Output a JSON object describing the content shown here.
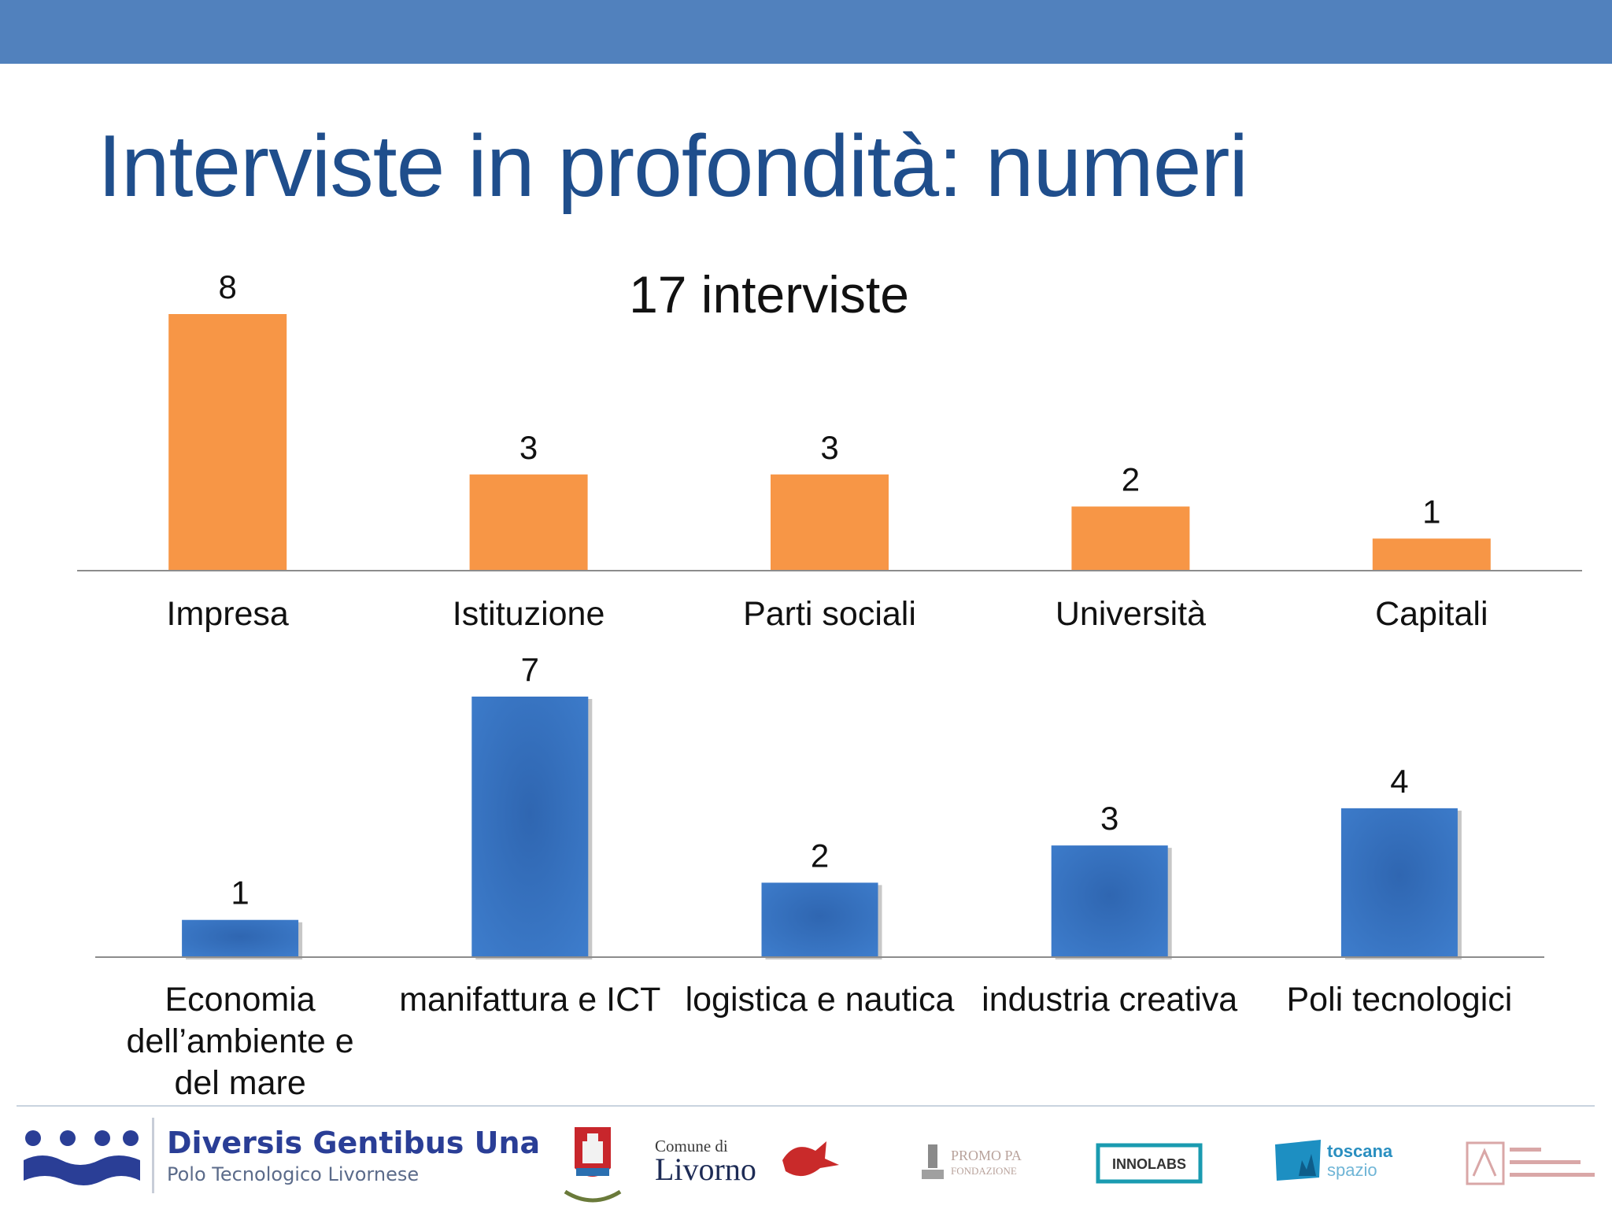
{
  "slide": {
    "title": "Interviste in profondità: numeri"
  },
  "colors": {
    "top_bar": "#5181bd",
    "title": "#1f4e8c",
    "bar_orange": "#f79646",
    "bar_blue": "#3a78c8",
    "axis": "#8c8c8c"
  },
  "chart_data": [
    {
      "type": "bar",
      "title": "17 interviste",
      "categories": [
        "Impresa",
        "Istituzione",
        "Parti sociali",
        "Università",
        "Capitali"
      ],
      "values": [
        8,
        3,
        3,
        2,
        1
      ],
      "ylim": [
        0,
        8
      ],
      "grid": false,
      "legend": "none",
      "data_labels": true,
      "color": "#f79646"
    },
    {
      "type": "bar",
      "title": "",
      "categories": [
        [
          "Economia",
          "dell’ambiente e",
          "del mare"
        ],
        [
          "manifattura e ICT"
        ],
        [
          "logistica e nautica"
        ],
        [
          "industria creativa"
        ],
        [
          "Poli tecnologici"
        ]
      ],
      "values": [
        1,
        7,
        2,
        3,
        4
      ],
      "ylim": [
        0,
        7
      ],
      "grid": false,
      "legend": "none",
      "data_labels": true,
      "color": "#3a78c8"
    }
  ],
  "footer": {
    "dgu_title": "Diversis Gentibus Una",
    "dgu_subtitle": "Polo Tecnologico Livornese",
    "comune_small": "Comune di",
    "comune_big": "Livorno",
    "logos": [
      "livorno-crest-icon",
      "cocchi-logo",
      "promo-pa-logo",
      "innolabs-logo",
      "toscana-spazio-logo",
      "university-logo"
    ],
    "promo_pa": "PROMO PA",
    "promo_pa_sub": "FONDAZIONE",
    "innolabs": "INNOLABS",
    "toscana": "toscana",
    "spazio": "spazio"
  }
}
